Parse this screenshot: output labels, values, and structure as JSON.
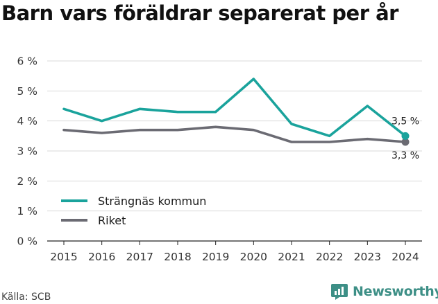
{
  "title": "Barn vars föräldrar separerat per år",
  "source": "Källa: SCB",
  "brand": "Newsworthy",
  "chart_data": {
    "type": "line",
    "x": [
      2015,
      2016,
      2017,
      2018,
      2019,
      2020,
      2021,
      2022,
      2023,
      2024
    ],
    "ylim": [
      0,
      6
    ],
    "yticks": [
      0,
      1,
      2,
      3,
      4,
      5,
      6
    ],
    "ytick_labels": [
      "0 %",
      "1 %",
      "2 %",
      "3 %",
      "4 %",
      "5 %",
      "6 %"
    ],
    "grid": "horizontal",
    "legend": "bottom-left",
    "series": [
      {
        "name": "Strängnäs kommun",
        "color": "#1aa39c",
        "values": [
          4.4,
          4.0,
          4.4,
          4.3,
          4.3,
          5.4,
          3.9,
          3.5,
          4.5,
          3.5
        ],
        "end_label": "3,5 %"
      },
      {
        "name": "Riket",
        "color": "#6b6b73",
        "values": [
          3.7,
          3.6,
          3.7,
          3.7,
          3.8,
          3.7,
          3.3,
          3.3,
          3.4,
          3.3
        ],
        "end_label": "3,3 %"
      }
    ]
  }
}
